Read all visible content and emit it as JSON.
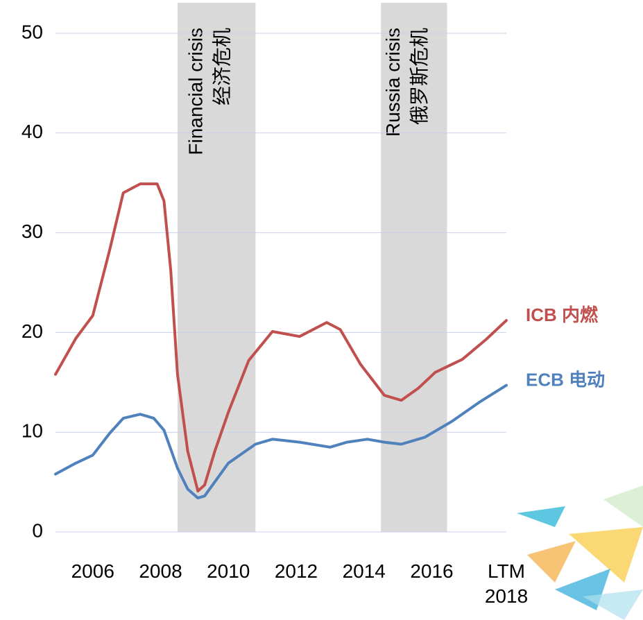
{
  "chart_data": {
    "type": "line",
    "xlim": [
      2004.9,
      2018.2
    ],
    "ylim": [
      0,
      50
    ],
    "yticks": [
      0,
      10,
      20,
      30,
      40,
      50
    ],
    "xticks": [
      2006,
      2008,
      2010,
      2012,
      2014,
      2016,
      {
        "value": 2018.2,
        "label": "LTM 2018"
      }
    ],
    "grid": true,
    "bands": [
      {
        "from": 2008.5,
        "to": 2010.8,
        "label": "Financial crisis",
        "sublabel": "经济危机"
      },
      {
        "from": 2014.5,
        "to": 2016.45,
        "label": "Russia crisis",
        "sublabel": "俄罗斯危机"
      }
    ],
    "series": [
      {
        "name": "ICB 内燃",
        "color": "#c0504d",
        "x": [
          2004.9,
          2005.5,
          2006.0,
          2006.5,
          2006.9,
          2007.4,
          2007.9,
          2008.1,
          2008.3,
          2008.5,
          2008.8,
          2009.1,
          2009.3,
          2009.6,
          2010.0,
          2010.6,
          2011.3,
          2012.1,
          2012.9,
          2013.3,
          2013.9,
          2014.6,
          2015.1,
          2015.6,
          2016.1,
          2016.9,
          2017.6,
          2018.2
        ],
        "values": [
          15.8,
          19.4,
          21.7,
          28.3,
          34.0,
          34.9,
          34.9,
          33.2,
          26.2,
          15.8,
          8.1,
          4.1,
          4.7,
          8.1,
          12.0,
          17.2,
          20.1,
          19.6,
          21.0,
          20.3,
          16.8,
          13.7,
          13.2,
          14.4,
          16.0,
          17.3,
          19.3,
          21.2
        ]
      },
      {
        "name": "ECB 电动",
        "color": "#4f81bd",
        "x": [
          2004.9,
          2005.5,
          2006.0,
          2006.5,
          2006.9,
          2007.4,
          2007.8,
          2008.1,
          2008.5,
          2008.8,
          2009.1,
          2009.3,
          2010.0,
          2010.8,
          2011.3,
          2012.1,
          2013.0,
          2013.5,
          2014.1,
          2014.6,
          2015.1,
          2015.8,
          2016.6,
          2017.4,
          2018.2
        ],
        "values": [
          5.8,
          6.9,
          7.7,
          9.9,
          11.4,
          11.8,
          11.4,
          10.2,
          6.4,
          4.3,
          3.4,
          3.6,
          6.9,
          8.8,
          9.3,
          9.0,
          8.5,
          9.0,
          9.3,
          9.0,
          8.8,
          9.5,
          11.1,
          13.0,
          14.7
        ]
      }
    ]
  }
}
